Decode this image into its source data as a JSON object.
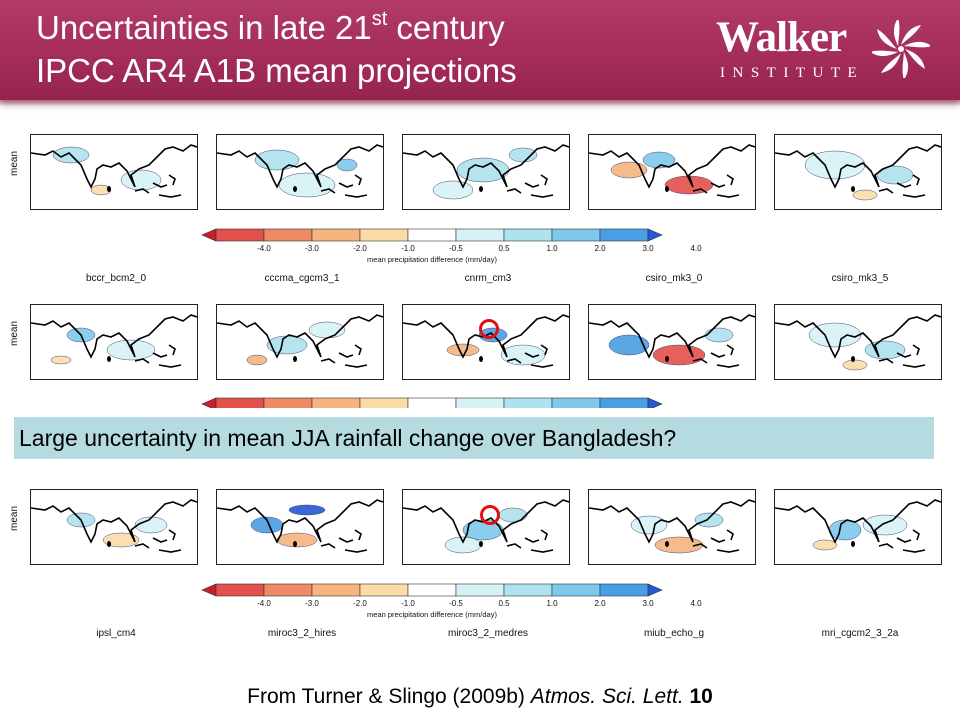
{
  "slide": {
    "title_line1_pre": "Uncertainties in late 21",
    "title_line1_sup": "st",
    "title_line1_post": " century",
    "title_line2": "IPCC AR4 A1B mean projections",
    "logo_word": "Walker",
    "logo_sub": "INSTITUTE",
    "callout": "Large uncertainty in mean JJA rainfall change over Bangladesh?",
    "citation_pre": "From Turner & Slingo (2009b) ",
    "citation_journal": "Atmos. Sci. Lett.",
    "citation_volume": "10"
  },
  "figure": {
    "row_label": "mean",
    "colorbar_label": "mean precipitation difference (mm/day)",
    "colorbar_ticks": [
      "-4.0",
      "-3.0",
      "-2.0",
      "-1.0",
      "-0.5",
      "0.5",
      "1.0",
      "2.0",
      "3.0",
      "4.0"
    ],
    "colorbar_colors": [
      "#c8202a",
      "#e4504c",
      "#f08a64",
      "#f6b47e",
      "#fbdca8",
      "#ffffff",
      "#d6f2f6",
      "#aee2ee",
      "#7ec8ec",
      "#4a9ee4",
      "#2558d4"
    ],
    "rows": [
      {
        "models": [
          "bccr_bcm2_0",
          "cccma_cgcm3_1",
          "cnrm_cm3",
          "csiro_mk3_0",
          "csiro_mk3_5"
        ]
      },
      {
        "models": []
      },
      {
        "models": [
          "ipsl_cm4",
          "miroc3_2_hires",
          "miroc3_2_medres",
          "miub_echo_g",
          "mri_cgcm2_3_2a"
        ]
      }
    ]
  },
  "colors": {
    "header": "#a52d5b",
    "callout_bg": "#b5dbe0",
    "highlight_circle": "#e01010"
  },
  "icons": {
    "logo_mark": "pinwheel-icon"
  }
}
